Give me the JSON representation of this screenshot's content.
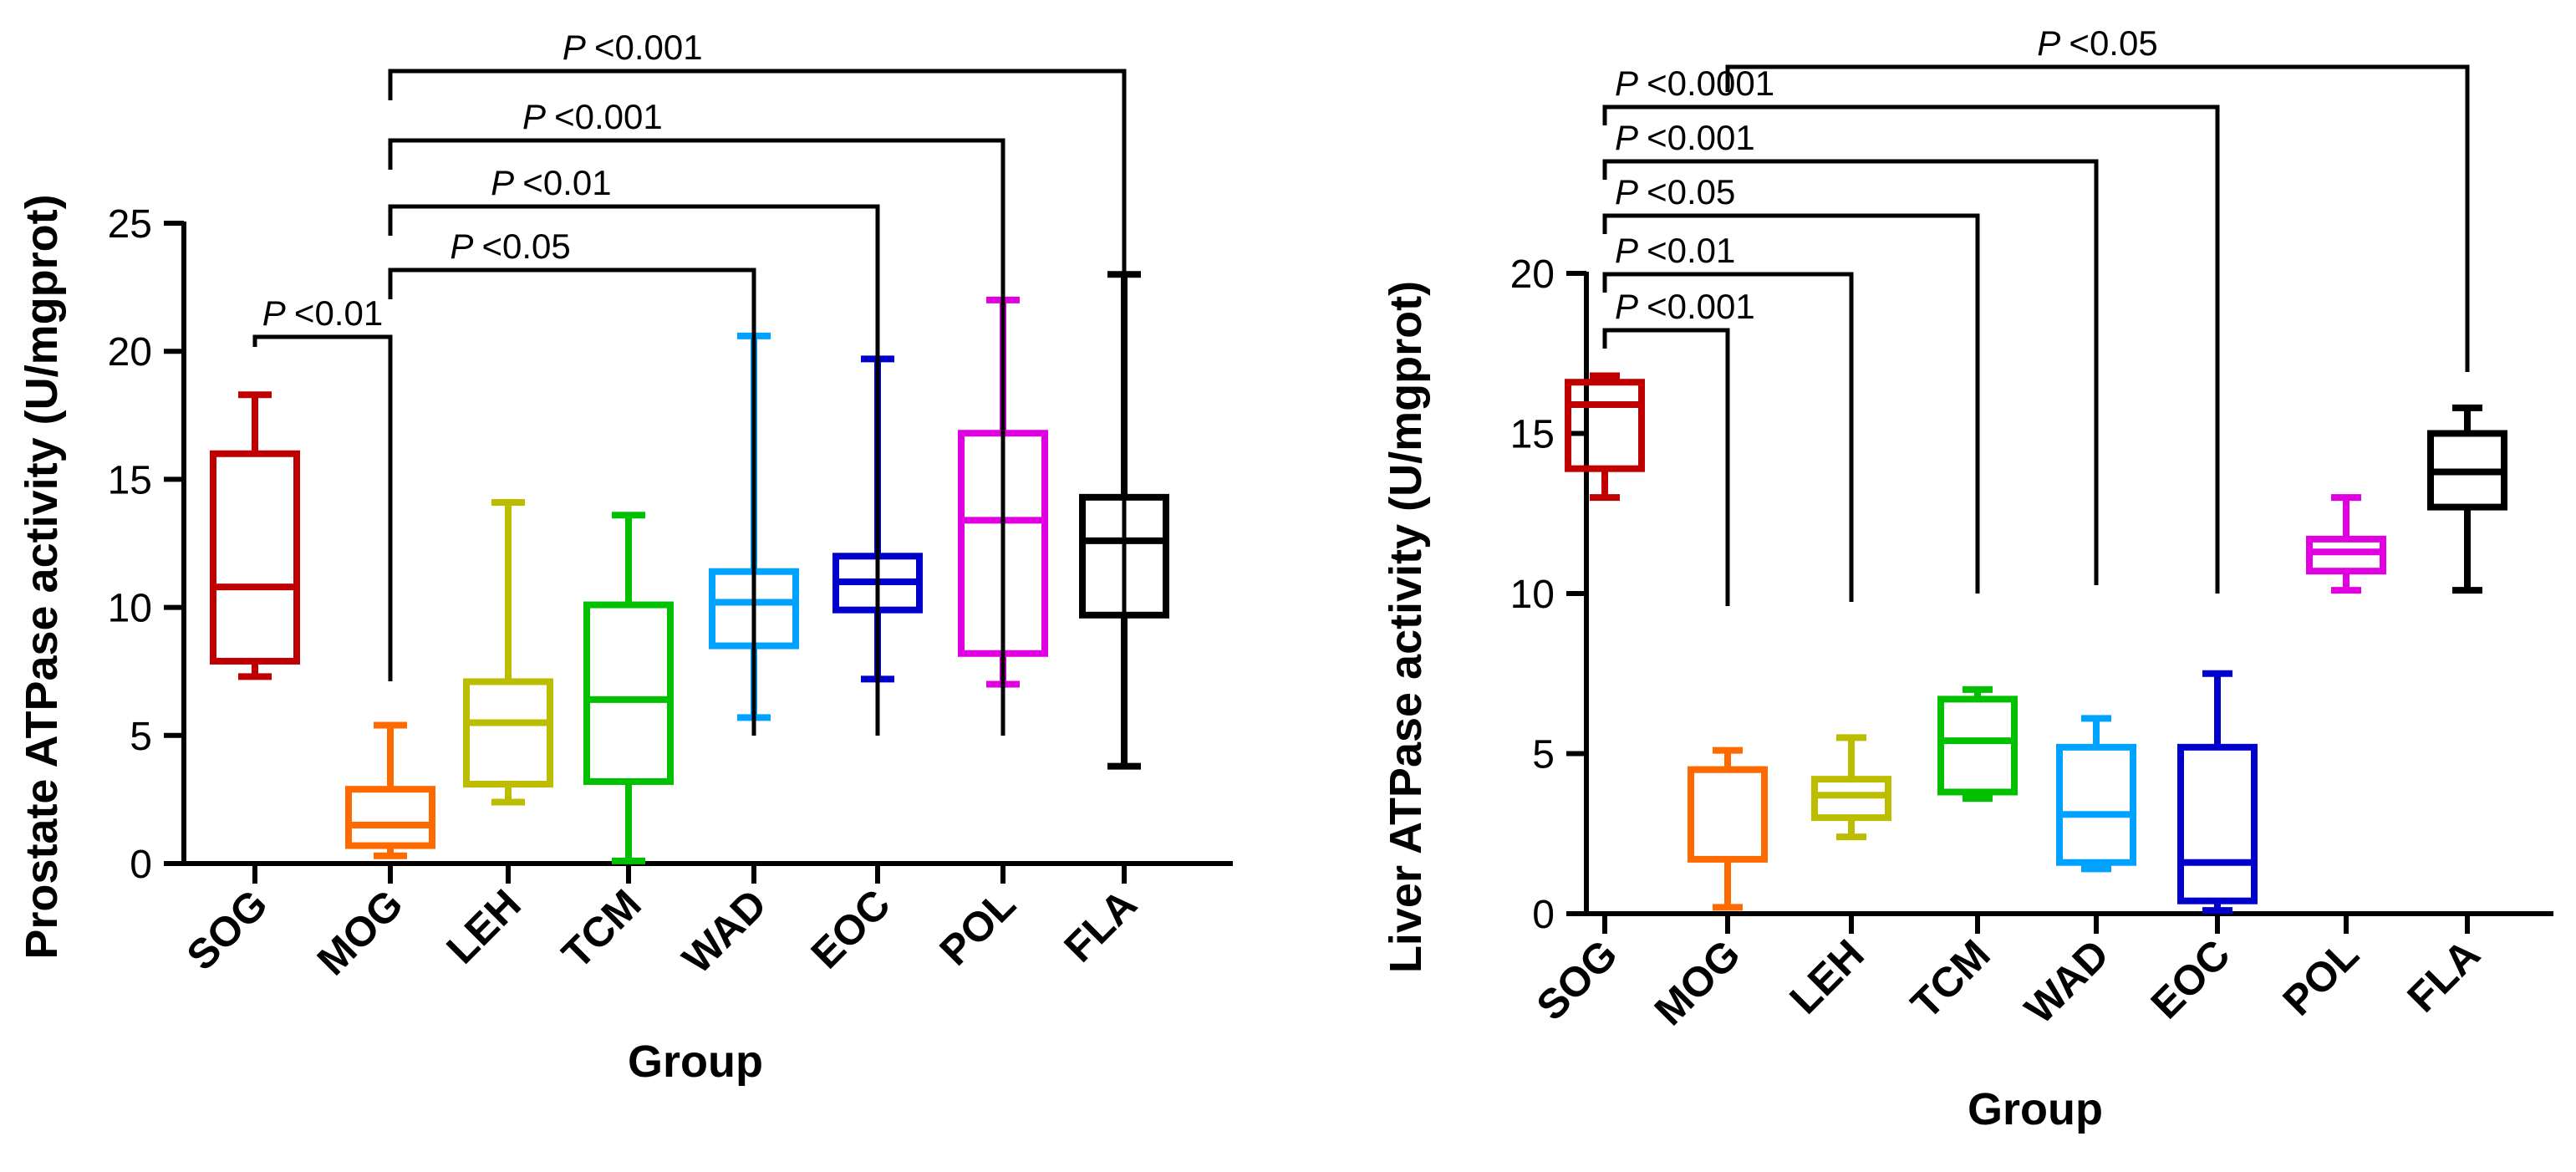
{
  "chart_data": [
    {
      "type": "box",
      "panel": "left",
      "xlabel": "Group",
      "ylabel": "Prostate ATPase activity (U/mgprot)",
      "ylim": [
        0,
        25
      ],
      "yticks": [
        0,
        5,
        10,
        15,
        20,
        25
      ],
      "categories": [
        "SOG",
        "MOG",
        "LEH",
        "TCM",
        "WAD",
        "EOC",
        "POL",
        "FLA"
      ],
      "series": [
        {
          "name": "SOG",
          "color": "#C00000",
          "min": 7.3,
          "q1": 7.9,
          "median": 10.8,
          "q3": 16.0,
          "max": 18.3
        },
        {
          "name": "MOG",
          "color": "#FF6A00",
          "min": 0.3,
          "q1": 0.7,
          "median": 1.5,
          "q3": 2.9,
          "max": 5.4
        },
        {
          "name": "LEH",
          "color": "#BDBD00",
          "min": 2.4,
          "q1": 3.1,
          "median": 5.5,
          "q3": 7.1,
          "max": 14.1
        },
        {
          "name": "TCM",
          "color": "#00C000",
          "min": 0.1,
          "q1": 3.2,
          "median": 6.4,
          "q3": 10.1,
          "max": 13.6
        },
        {
          "name": "WAD",
          "color": "#00A2FF",
          "min": 5.7,
          "q1": 8.5,
          "median": 10.2,
          "q3": 11.4,
          "max": 20.6
        },
        {
          "name": "EOC",
          "color": "#0000CC",
          "min": 7.2,
          "q1": 9.9,
          "median": 11.0,
          "q3": 12.0,
          "max": 19.7
        },
        {
          "name": "POL",
          "color": "#E000E0",
          "min": 7.0,
          "q1": 8.2,
          "median": 13.4,
          "q3": 16.8,
          "max": 22.0
        },
        {
          "name": "FLA",
          "color": "#000000",
          "min": 3.8,
          "q1": 9.7,
          "median": 12.6,
          "q3": 14.3,
          "max": 23.0
        }
      ],
      "comparisons": [
        {
          "from": "SOG",
          "to": "MOG",
          "label": "P <0.01"
        },
        {
          "from": "MOG",
          "to": "WAD",
          "label": "P <0.05"
        },
        {
          "from": "MOG",
          "to": "EOC",
          "label": "P <0.01"
        },
        {
          "from": "MOG",
          "to": "POL",
          "label": "P <0.001"
        },
        {
          "from": "MOG",
          "to": "FLA",
          "label": "P <0.001"
        }
      ]
    },
    {
      "type": "box",
      "panel": "right",
      "xlabel": "Group",
      "ylabel": "Liver ATPase activity (U/mgprot)",
      "ylim": [
        0,
        20
      ],
      "yticks": [
        0,
        5,
        10,
        15,
        20
      ],
      "categories": [
        "SOG",
        "MOG",
        "LEH",
        "TCM",
        "WAD",
        "EOC",
        "POL",
        "FLA"
      ],
      "series": [
        {
          "name": "SOG",
          "color": "#C00000",
          "min": 13.0,
          "q1": 13.9,
          "median": 15.9,
          "q3": 16.6,
          "max": 16.8
        },
        {
          "name": "MOG",
          "color": "#FF6A00",
          "min": 0.2,
          "q1": 1.7,
          "median": 4.5,
          "q3": 4.5,
          "max": 5.1
        },
        {
          "name": "LEH",
          "color": "#BDBD00",
          "min": 2.4,
          "q1": 3.0,
          "median": 3.7,
          "q3": 4.2,
          "max": 5.5
        },
        {
          "name": "TCM",
          "color": "#00C000",
          "min": 3.6,
          "q1": 3.8,
          "median": 5.4,
          "q3": 6.7,
          "max": 7.0
        },
        {
          "name": "WAD",
          "color": "#00A2FF",
          "min": 1.4,
          "q1": 1.6,
          "median": 3.1,
          "q3": 5.2,
          "max": 6.1
        },
        {
          "name": "EOC",
          "color": "#0000CC",
          "min": 0.1,
          "q1": 0.4,
          "median": 1.6,
          "q3": 5.2,
          "max": 7.5
        },
        {
          "name": "POL",
          "color": "#E000E0",
          "min": 10.1,
          "q1": 10.7,
          "median": 11.3,
          "q3": 11.7,
          "max": 13.0
        },
        {
          "name": "FLA",
          "color": "#000000",
          "min": 10.1,
          "q1": 12.7,
          "median": 13.8,
          "q3": 15.0,
          "max": 15.8
        }
      ],
      "comparisons": [
        {
          "from": "SOG",
          "to": "MOG",
          "label": "P <0.001"
        },
        {
          "from": "SOG",
          "to": "LEH",
          "label": "P <0.01"
        },
        {
          "from": "SOG",
          "to": "TCM",
          "label": "P <0.05"
        },
        {
          "from": "SOG",
          "to": "WAD",
          "label": "P <0.001"
        },
        {
          "from": "SOG",
          "to": "EOC",
          "label": "P <0.0001"
        },
        {
          "from": "MOG",
          "to": "FLA",
          "label": "P <0.05"
        }
      ]
    }
  ]
}
